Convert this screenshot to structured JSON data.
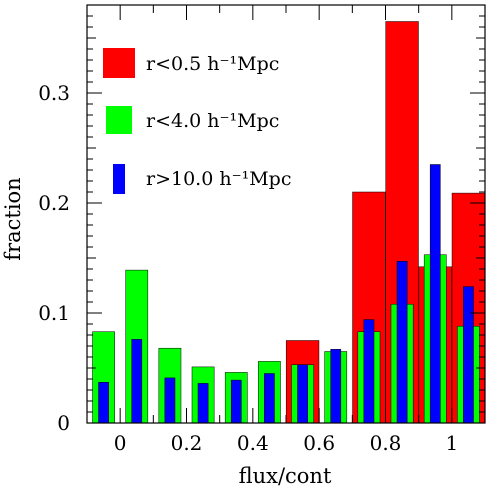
{
  "chart_data": {
    "type": "bar",
    "title": "",
    "xlabel": "flux/cont",
    "ylabel": "fraction",
    "xlim": [
      -0.1,
      1.1
    ],
    "ylim": [
      0,
      0.38
    ],
    "x_ticks": [
      {
        "value": 0,
        "label": "0"
      },
      {
        "value": 0.2,
        "label": "0.2"
      },
      {
        "value": 0.4,
        "label": "0.4"
      },
      {
        "value": 0.6,
        "label": "0.6"
      },
      {
        "value": 0.8,
        "label": "0.8"
      },
      {
        "value": 1.0,
        "label": "1"
      }
    ],
    "y_ticks": [
      {
        "value": 0,
        "label": "0"
      },
      {
        "value": 0.1,
        "label": "0.1"
      },
      {
        "value": 0.2,
        "label": "0.2"
      },
      {
        "value": 0.3,
        "label": "0.3"
      }
    ],
    "bin_width": 0.1,
    "bin_starts": [
      -0.1,
      0.0,
      0.1,
      0.2,
      0.3,
      0.4,
      0.5,
      0.6,
      0.7,
      0.8,
      0.9,
      1.0
    ],
    "legend_position": "top-left",
    "series": [
      {
        "name": "r<0.5 h⁻¹Mpc",
        "color": "#ff0000",
        "values": [
          0,
          0,
          0,
          0,
          0,
          0,
          0.075,
          0,
          0.21,
          0.365,
          0.142,
          0.209
        ]
      },
      {
        "name": "r<4.0 h⁻¹Mpc",
        "color": "#00ff00",
        "values": [
          0.083,
          0.139,
          0.068,
          0.051,
          0.046,
          0.056,
          0.053,
          0.065,
          0.083,
          0.108,
          0.153,
          0.088
        ]
      },
      {
        "name": "r>10.0 h⁻¹Mpc",
        "color": "#0000ff",
        "values": [
          0.037,
          0.076,
          0.041,
          0.036,
          0.039,
          0.045,
          0.053,
          0.067,
          0.094,
          0.147,
          0.235,
          0.124
        ]
      }
    ]
  }
}
